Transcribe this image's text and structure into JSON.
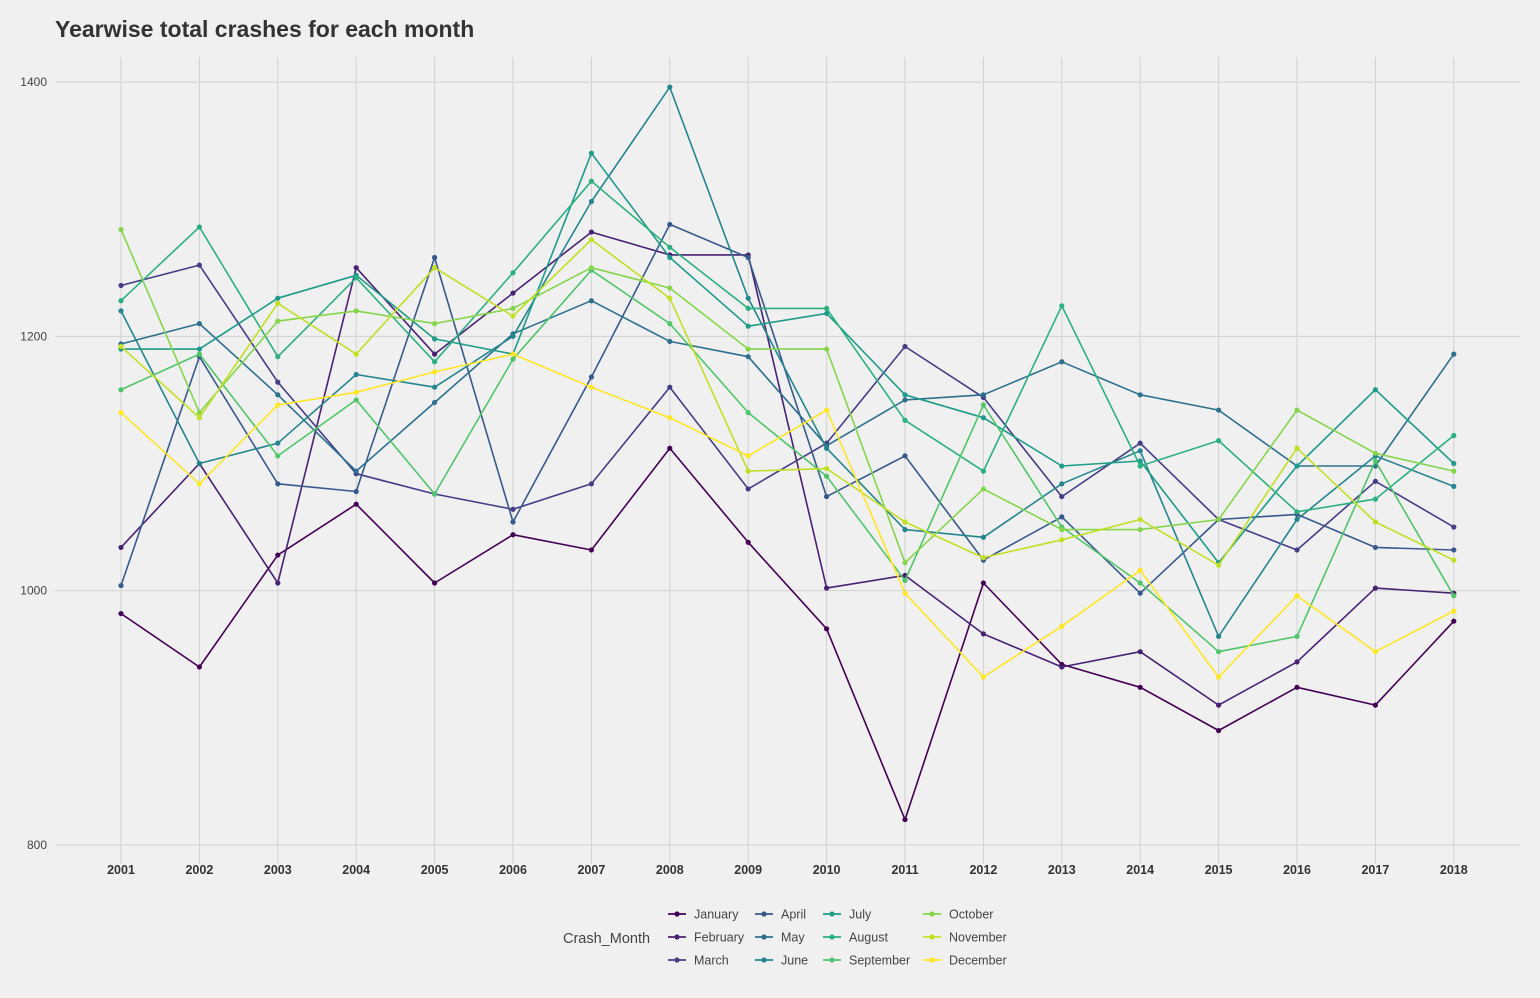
{
  "chart_data": {
    "type": "line",
    "title": "Yearwise total crashes for each month",
    "xlabel": "",
    "ylabel": "",
    "legend_title": "Crash_Month",
    "legend_position": "bottom",
    "grid": true,
    "ylim": [
      785,
      1420
    ],
    "y_ticks": [
      800,
      1000,
      1200,
      1400
    ],
    "x": [
      "2001",
      "2002",
      "2003",
      "2004",
      "2005",
      "2006",
      "2007",
      "2008",
      "2009",
      "2010",
      "2011",
      "2012",
      "2013",
      "2014",
      "2015",
      "2016",
      "2017",
      "2018"
    ],
    "series": [
      {
        "name": "January",
        "color": "#440154",
        "values": [
          982,
          940,
          1028,
          1068,
          1006,
          1044,
          1032,
          1112,
          1038,
          970,
          820,
          1006,
          942,
          924,
          890,
          924,
          910,
          976
        ]
      },
      {
        "name": "February",
        "color": "#482173",
        "values": [
          1034,
          1100,
          1006,
          1254,
          1186,
          1234,
          1282,
          1264,
          1264,
          1002,
          1012,
          966,
          940,
          952,
          910,
          944,
          1002,
          998
        ]
      },
      {
        "name": "March",
        "color": "#433E85",
        "values": [
          1240,
          1256,
          1164,
          1092,
          1076,
          1064,
          1084,
          1160,
          1080,
          1116,
          1192,
          1152,
          1074,
          1116,
          1056,
          1032,
          1086,
          1050
        ]
      },
      {
        "name": "April",
        "color": "#38598C",
        "values": [
          1004,
          1184,
          1084,
          1078,
          1262,
          1054,
          1168,
          1288,
          1262,
          1074,
          1106,
          1024,
          1058,
          998,
          1056,
          1060,
          1034,
          1032
        ]
      },
      {
        "name": "May",
        "color": "#2D708E",
        "values": [
          1194,
          1210,
          1154,
          1094,
          1148,
          1202,
          1228,
          1196,
          1184,
          1114,
          1150,
          1154,
          1180,
          1154,
          1142,
          1098,
          1098,
          1186
        ]
      },
      {
        "name": "June",
        "color": "#25858E",
        "values": [
          1220,
          1100,
          1116,
          1170,
          1160,
          1200,
          1306,
          1396,
          1230,
          1112,
          1048,
          1042,
          1084,
          1110,
          964,
          1056,
          1106,
          1082
        ]
      },
      {
        "name": "July",
        "color": "#1E9B8A",
        "values": [
          1190,
          1190,
          1230,
          1248,
          1198,
          1186,
          1344,
          1262,
          1208,
          1218,
          1154,
          1136,
          1098,
          1102,
          1022,
          1098,
          1158,
          1100
        ]
      },
      {
        "name": "August",
        "color": "#2BB07F",
        "values": [
          1228,
          1286,
          1184,
          1246,
          1180,
          1250,
          1322,
          1270,
          1222,
          1222,
          1134,
          1094,
          1224,
          1098,
          1118,
          1062,
          1072,
          1122
        ]
      },
      {
        "name": "September",
        "color": "#51C56A",
        "values": [
          1158,
          1186,
          1106,
          1150,
          1076,
          1182,
          1252,
          1210,
          1140,
          1090,
          1008,
          1146,
          1050,
          1006,
          952,
          964,
          1102,
          996
        ]
      },
      {
        "name": "October",
        "color": "#85D54A",
        "values": [
          1284,
          1140,
          1212,
          1220,
          1210,
          1222,
          1254,
          1238,
          1190,
          1190,
          1022,
          1080,
          1048,
          1048,
          1056,
          1142,
          1108,
          1094
        ]
      },
      {
        "name": "November",
        "color": "#C2DF23",
        "values": [
          1192,
          1136,
          1226,
          1186,
          1254,
          1216,
          1276,
          1230,
          1094,
          1096,
          1054,
          1026,
          1040,
          1056,
          1020,
          1112,
          1054,
          1024
        ]
      },
      {
        "name": "December",
        "color": "#FDE725",
        "values": [
          1140,
          1084,
          1146,
          1156,
          1172,
          1186,
          1160,
          1136,
          1106,
          1142,
          998,
          932,
          972,
          1016,
          932,
          996,
          952,
          984
        ]
      }
    ]
  }
}
